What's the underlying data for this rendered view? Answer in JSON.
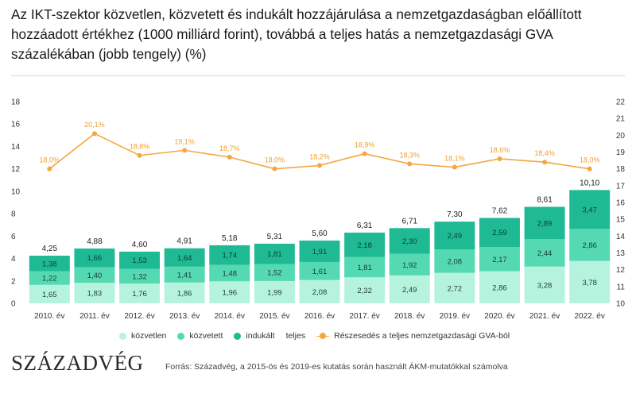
{
  "title": "Az IKT-szektor közvetlen, közvetett és indukált hozzájárulása a nemzetgazdaságban előállított hozzáadott értékhez (1000 milliárd forint), továbbá a teljes hatás a nemzetgazdasági GVA százalékában (jobb tengely) (%)",
  "brand": "SZÁZADVÉG",
  "source": "Forrás: Századvég, a 2015-ös és 2019-es kutatás során használt ÁKM-mutatókkal számolva",
  "colors": {
    "kozvetlen": "#b6f3df",
    "kozvetett": "#54d9b2",
    "indukalt": "#1fba94",
    "share": "#f4a641"
  },
  "legend": [
    {
      "key": "kozvetlen",
      "label": "közvetlen"
    },
    {
      "key": "kozvetett",
      "label": "közvetett"
    },
    {
      "key": "indukalt",
      "label": "indukált"
    },
    {
      "key": "teljes",
      "label": "teljes"
    },
    {
      "key": "share",
      "label": "Részesedés a teljes nemzetgazdasági GVA-ból"
    }
  ],
  "chart_data": {
    "type": "bar",
    "stacked": true,
    "categories": [
      "2010. év",
      "2011. év",
      "2012. év",
      "2013. év",
      "2014. év",
      "2015. év",
      "2016. év",
      "2017. év",
      "2018. év",
      "2019. év",
      "2020. év",
      "2021. év",
      "2022. év"
    ],
    "series": [
      {
        "name": "közvetlen",
        "values": [
          1.65,
          1.83,
          1.76,
          1.86,
          1.96,
          1.99,
          2.08,
          2.32,
          2.49,
          2.72,
          2.86,
          3.28,
          3.78
        ]
      },
      {
        "name": "közvetett",
        "values": [
          1.22,
          1.4,
          1.32,
          1.41,
          1.48,
          1.52,
          1.61,
          1.81,
          1.92,
          2.08,
          2.17,
          2.44,
          2.86
        ]
      },
      {
        "name": "indukált",
        "values": [
          1.38,
          1.66,
          1.53,
          1.64,
          1.74,
          1.81,
          1.91,
          2.18,
          2.3,
          2.49,
          2.59,
          2.89,
          3.47
        ]
      }
    ],
    "total_name": "teljes",
    "totals": [
      "4,25",
      "4,88",
      "4,60",
      "4,91",
      "5,18",
      "5,31",
      "5,60",
      "6,31",
      "6,71",
      "7,30",
      "7,62",
      "8,61",
      "10,10"
    ],
    "segment_labels": [
      [
        "1,65",
        "1,22",
        "1,38"
      ],
      [
        "1,83",
        "1,40",
        "1,66"
      ],
      [
        "1,76",
        "1,32",
        "1,53"
      ],
      [
        "1,86",
        "1,41",
        "1,64"
      ],
      [
        "1,96",
        "1,48",
        "1,74"
      ],
      [
        "1,99",
        "1,52",
        "1,81"
      ],
      [
        "2,08",
        "1,61",
        "1,91"
      ],
      [
        "2,32",
        "1,81",
        "2,18"
      ],
      [
        "2,49",
        "1,92",
        "2,30"
      ],
      [
        "2,72",
        "2,08",
        "2,49"
      ],
      [
        "2,86",
        "2,17",
        "2,59"
      ],
      [
        "3,28",
        "2,44",
        "2,89"
      ],
      [
        "3,78",
        "2,86",
        "3,47"
      ]
    ],
    "line_series": {
      "name": "Részesedés a teljes nemzetgazdasági GVA-ból",
      "axis": "right",
      "values": [
        18.0,
        20.1,
        18.8,
        19.1,
        18.7,
        18.0,
        18.2,
        18.9,
        18.3,
        18.1,
        18.6,
        18.4,
        18.0
      ],
      "labels": [
        "18,0%",
        "20,1%",
        "18,8%",
        "19,1%",
        "18,7%",
        "18,0%",
        "18,2%",
        "18,9%",
        "18,3%",
        "18,1%",
        "18,6%",
        "18,4%",
        "18,0%"
      ]
    },
    "y_left": {
      "min": 0,
      "max": 18,
      "ticks": [
        "0",
        "2",
        "4",
        "6",
        "8",
        "10",
        "12",
        "14",
        "16",
        "18"
      ]
    },
    "y_right": {
      "min": 10,
      "max": 22,
      "ticks": [
        "10",
        "11",
        "12",
        "13",
        "14",
        "15",
        "16",
        "17",
        "18",
        "19",
        "20",
        "21",
        "22"
      ]
    },
    "grid": false,
    "legend_position": "bottom"
  }
}
